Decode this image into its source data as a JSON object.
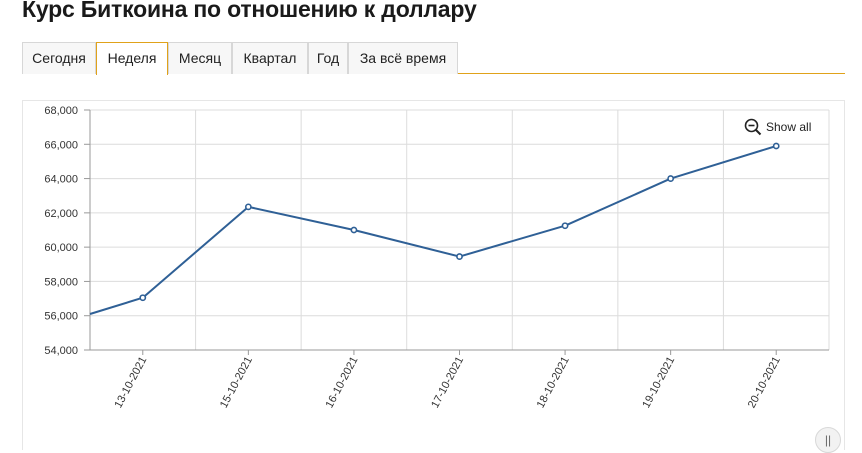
{
  "page": {
    "title": "Курс Биткоина по отношению к доллару"
  },
  "tabs": [
    {
      "label": "Сегодня",
      "active": false
    },
    {
      "label": "Неделя",
      "active": true
    },
    {
      "label": "Месяц",
      "active": false
    },
    {
      "label": "Квартал",
      "active": false
    },
    {
      "label": "Год",
      "active": false
    },
    {
      "label": "За всё время",
      "active": false
    }
  ],
  "controls": {
    "show_all_label": "Show all",
    "show_all_icon": "zoom-out-icon"
  },
  "colors": {
    "accent": "#e0a21a",
    "line": "#2f6096",
    "grid": "#dcdcdc"
  },
  "chart_data": {
    "type": "line",
    "title": "",
    "xlabel": "",
    "ylabel": "",
    "ylim": [
      54000,
      68000
    ],
    "y_ticks": [
      54000,
      56000,
      58000,
      60000,
      62000,
      64000,
      66000,
      68000
    ],
    "y_tick_labels": [
      "54,000",
      "56,000",
      "58,000",
      "60,000",
      "62,000",
      "64,000",
      "66,000",
      "68,000"
    ],
    "categories": [
      "13-10-2021",
      "15-10-2021",
      "16-10-2021",
      "17-10-2021",
      "18-10-2021",
      "19-10-2021",
      "20-10-2021"
    ],
    "series": [
      {
        "values": [
          57050,
          62350,
          61000,
          59450,
          61250,
          64000,
          65900
        ]
      }
    ],
    "leading_value": 56100,
    "grid": true,
    "legend": "none"
  }
}
